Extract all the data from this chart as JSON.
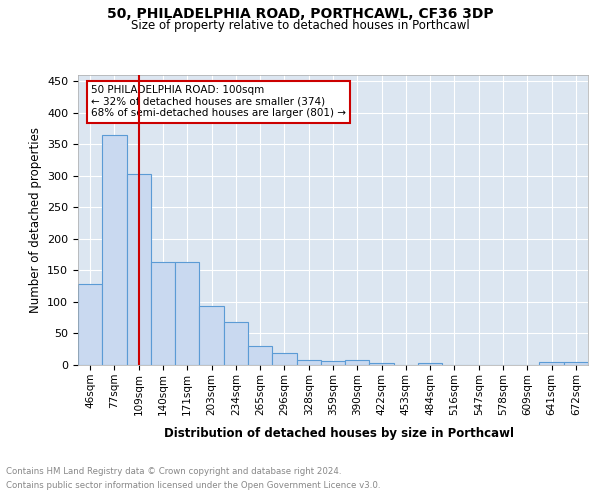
{
  "title": "50, PHILADELPHIA ROAD, PORTHCAWL, CF36 3DP",
  "subtitle": "Size of property relative to detached houses in Porthcawl",
  "xlabel": "Distribution of detached houses by size in Porthcawl",
  "ylabel": "Number of detached properties",
  "bar_labels": [
    "46sqm",
    "77sqm",
    "109sqm",
    "140sqm",
    "171sqm",
    "203sqm",
    "234sqm",
    "265sqm",
    "296sqm",
    "328sqm",
    "359sqm",
    "390sqm",
    "422sqm",
    "453sqm",
    "484sqm",
    "516sqm",
    "547sqm",
    "578sqm",
    "609sqm",
    "641sqm",
    "672sqm"
  ],
  "bar_values": [
    128,
    365,
    303,
    163,
    163,
    93,
    69,
    30,
    19,
    8,
    6,
    8,
    3,
    0,
    3,
    0,
    0,
    0,
    0,
    4,
    4
  ],
  "bar_color": "#c9d9f0",
  "bar_edge_color": "#5b9bd5",
  "ylim": [
    0,
    460
  ],
  "yticks": [
    0,
    50,
    100,
    150,
    200,
    250,
    300,
    350,
    400,
    450
  ],
  "property_line_x": 2,
  "property_line_color": "#cc0000",
  "annotation_text": "50 PHILADELPHIA ROAD: 100sqm\n← 32% of detached houses are smaller (374)\n68% of semi-detached houses are larger (801) →",
  "annotation_box_color": "#ffffff",
  "annotation_box_edge": "#cc0000",
  "footer_line1": "Contains HM Land Registry data © Crown copyright and database right 2024.",
  "footer_line2": "Contains public sector information licensed under the Open Government Licence v3.0.",
  "plot_bg_color": "#dce6f1"
}
